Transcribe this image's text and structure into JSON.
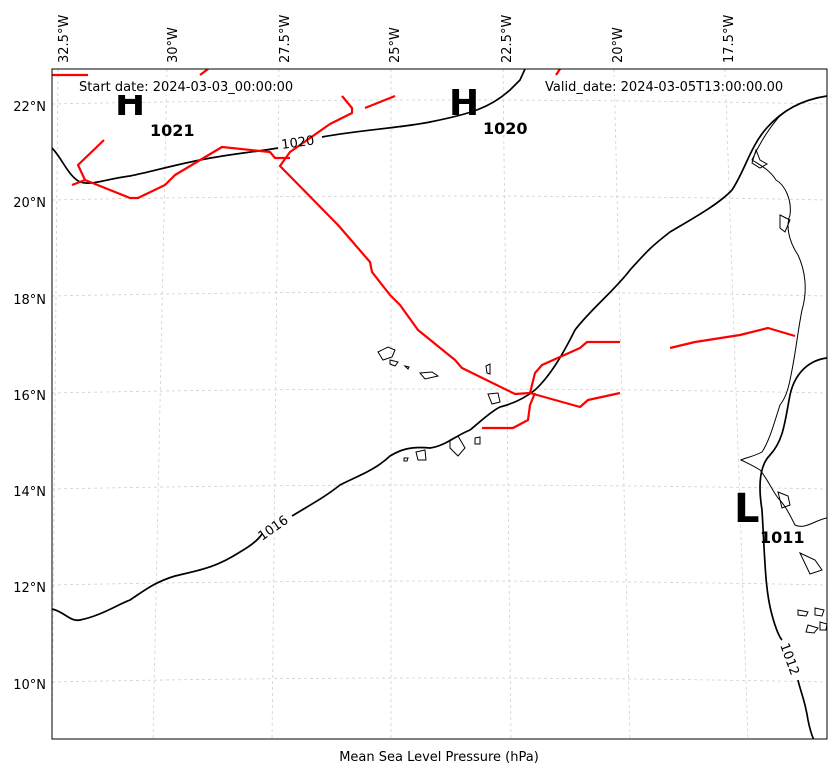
{
  "header": {
    "start_date": "Start date: 2024-03-03_00:00:00",
    "valid_date": "Valid_date: 2024-03-05T13:00:00.00"
  },
  "xlabel": "Mean Sea Level Pressure (hPa)",
  "lon_ticks": [
    "32.5°W",
    "30°W",
    "27.5°W",
    "25°W",
    "22.5°W",
    "20°W",
    "17.5°W"
  ],
  "lat_ticks": [
    "22°N",
    "20°N",
    "18°N",
    "16°N",
    "14°N",
    "12°N",
    "10°N"
  ],
  "contour_labels": [
    "1020",
    "1016",
    "1012"
  ],
  "pressure_centers": [
    {
      "symbol": "H",
      "value": "1021"
    },
    {
      "symbol": "H",
      "value": "1020"
    },
    {
      "symbol": "L",
      "value": "1011"
    }
  ],
  "colors": {
    "isobar": "#000000",
    "front": "#ff0000",
    "grid": "#d0d0d0",
    "coast": "#000000"
  }
}
